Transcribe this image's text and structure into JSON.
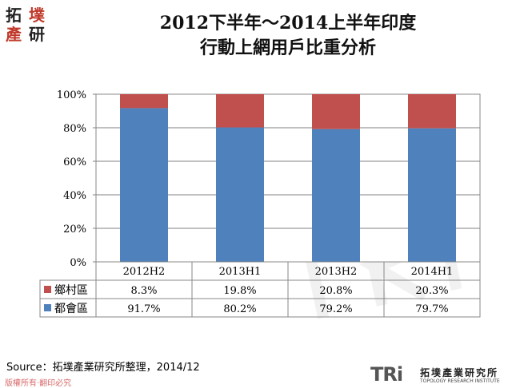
{
  "header": {
    "logo_text": "拓墣產業研究所",
    "title_line1": "2012下半年～2014上半年印度",
    "title_line2": "行動上網用戶比重分析"
  },
  "chart_data": {
    "type": "bar",
    "stacked": true,
    "percent_stacked": true,
    "categories": [
      "2012H2",
      "2013H1",
      "2013H2",
      "2014H1"
    ],
    "series": [
      {
        "name": "都會區",
        "color": "#4f81bd",
        "values": [
          91.7,
          80.2,
          79.2,
          79.7
        ],
        "labels": [
          "91.7%",
          "80.2%",
          "79.2%",
          "79.7%"
        ]
      },
      {
        "name": "鄉村區",
        "color": "#c0504d",
        "values": [
          8.3,
          19.8,
          20.8,
          20.3
        ],
        "labels": [
          "8.3%",
          "19.8%",
          "20.8%",
          "20.3%"
        ]
      }
    ],
    "table_row_order": [
      1,
      0
    ],
    "y_ticks": [
      "0%",
      "20%",
      "40%",
      "60%",
      "80%",
      "100%"
    ],
    "ylim": [
      0,
      100
    ],
    "grid": true,
    "data_table": true
  },
  "footer": {
    "source": "Source：拓墣產業研究所整理，2014/12",
    "copyright": "版權所有‧翻印必究",
    "tri_mark": "TRi",
    "tri_name": "拓墣產業研究所",
    "tri_english": "TOPOLOGY RESEARCH INSTITUTE"
  }
}
